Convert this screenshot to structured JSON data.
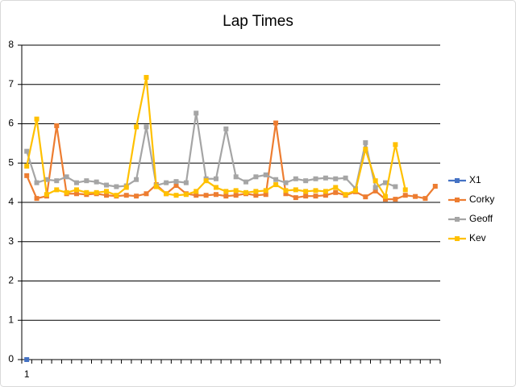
{
  "chart_data": {
    "type": "line",
    "title": "Lap Times",
    "categories": [
      "1",
      null,
      null,
      null,
      null,
      null,
      null,
      null,
      null,
      null,
      null,
      null,
      null,
      null,
      null,
      null,
      null,
      null,
      null,
      null,
      null,
      null,
      null,
      null,
      null,
      null,
      null,
      null,
      null,
      null,
      null,
      null,
      null,
      null,
      null,
      null,
      null,
      null,
      null,
      null,
      null,
      null
    ],
    "ylim": [
      0,
      8
    ],
    "yticks": [
      0,
      1,
      2,
      3,
      4,
      5,
      6,
      7,
      8
    ],
    "grid": true,
    "legend": "right",
    "series": [
      {
        "name": "X1",
        "color": "#4472c4",
        "values": [
          0,
          null,
          null,
          null,
          null,
          null,
          null,
          null,
          null,
          null,
          null,
          null,
          null,
          null,
          null,
          null,
          null,
          null,
          null,
          null,
          null,
          null,
          null,
          null,
          null,
          null,
          null,
          null,
          null,
          null,
          null,
          null,
          null,
          null,
          null,
          null,
          null,
          null,
          null,
          null,
          null,
          null
        ]
      },
      {
        "name": "Corky",
        "color": "#ed7d31",
        "values": [
          4.68,
          4.1,
          4.16,
          5.95,
          4.22,
          4.22,
          4.2,
          4.22,
          4.18,
          4.16,
          4.18,
          4.16,
          4.22,
          4.45,
          4.22,
          4.43,
          4.22,
          4.18,
          4.18,
          4.2,
          4.16,
          4.18,
          4.22,
          4.18,
          4.2,
          6.02,
          4.22,
          4.12,
          4.16,
          4.16,
          4.18,
          4.25,
          4.18,
          4.27,
          4.14,
          4.29,
          4.08,
          4.08,
          4.18,
          4.15,
          4.1,
          4.41
        ]
      },
      {
        "name": "Geoff",
        "color": "#a5a5a5",
        "values": [
          5.3,
          4.5,
          4.58,
          4.55,
          4.65,
          4.5,
          4.55,
          4.52,
          4.44,
          4.4,
          4.42,
          4.58,
          5.92,
          4.43,
          4.5,
          4.53,
          4.5,
          6.27,
          4.6,
          4.6,
          5.87,
          4.65,
          4.52,
          4.65,
          4.7,
          4.58,
          4.5,
          4.6,
          4.55,
          4.6,
          4.62,
          4.6,
          4.62,
          4.35,
          5.52,
          4.38,
          4.5,
          4.4,
          null,
          null,
          null,
          null
        ]
      },
      {
        "name": "Kev",
        "color": "#ffc000",
        "values": [
          4.92,
          6.12,
          4.2,
          4.32,
          4.25,
          4.32,
          4.25,
          4.25,
          4.28,
          4.18,
          4.38,
          5.92,
          7.18,
          4.4,
          4.22,
          4.18,
          4.2,
          4.28,
          4.55,
          4.38,
          4.28,
          4.3,
          4.25,
          4.28,
          4.3,
          4.45,
          4.3,
          4.32,
          4.28,
          4.3,
          4.28,
          4.38,
          4.2,
          4.3,
          5.35,
          4.55,
          4.15,
          5.47,
          4.32,
          null,
          null,
          null
        ]
      }
    ]
  }
}
